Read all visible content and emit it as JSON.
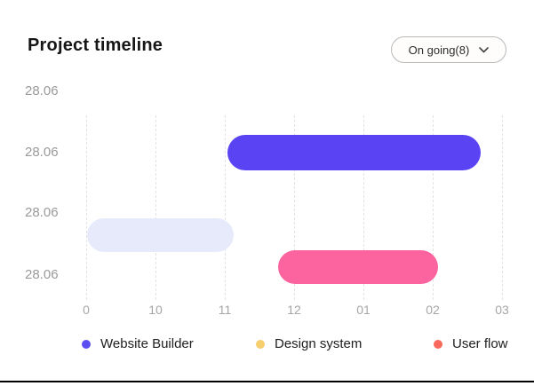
{
  "header": {
    "title": "Project timeline",
    "filter": {
      "label": "On going(8)",
      "icon": "chevron-down-icon"
    }
  },
  "chart_data": {
    "type": "bar",
    "subtype": "gantt-timeline",
    "title": "Project timeline",
    "x_ticks": [
      "0",
      "10",
      "11",
      "12",
      "01",
      "02",
      "03"
    ],
    "y_labels": [
      "28.06",
      "28.06",
      "28.06",
      "28.06"
    ],
    "bars": [
      {
        "name": "Website Builder",
        "start_tick": 2.04,
        "end_tick": 5.69,
        "row": 1,
        "color": "#5a43f2"
      },
      {
        "name": "Design system",
        "start_tick": 0.01,
        "end_tick": 2.13,
        "row": 2,
        "color": "#e7eafb"
      },
      {
        "name": "User flow",
        "start_tick": 2.77,
        "end_tick": 5.08,
        "row": 3,
        "color": "#fb649e"
      }
    ],
    "legend": [
      {
        "label": "Website Builder",
        "color": "#5b4ff2"
      },
      {
        "label": "Design system",
        "color": "#f7ce6e"
      },
      {
        "label": "User flow",
        "color": "#f9695b"
      }
    ],
    "grid": "vertical-dashed",
    "legend_position": "bottom"
  }
}
